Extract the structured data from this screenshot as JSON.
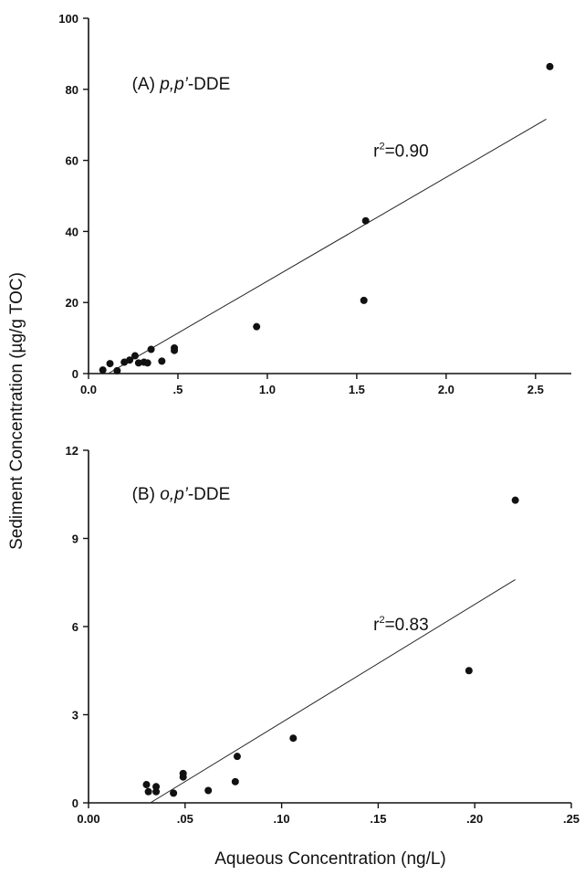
{
  "figure": {
    "ylabel": "Sediment Concentration (µg/g TOC)",
    "xlabel": "Aqueous Concentration (ng/L)"
  },
  "chart_data": [
    {
      "type": "scatter",
      "panel_prefix": "(A) ",
      "panel_compound": "p,p’",
      "panel_suffix": "-DDE",
      "r2_text": "0.90",
      "xlim": [
        0,
        2.7
      ],
      "ylim": [
        0,
        100
      ],
      "xticks": [
        0.0,
        0.5,
        1.0,
        1.5,
        2.0,
        2.5
      ],
      "xtick_labels": [
        "0.0",
        ".5",
        "1.0",
        "1.5",
        "2.0",
        "2.5"
      ],
      "yticks": [
        0,
        20,
        40,
        60,
        80,
        100
      ],
      "ytick_labels": [
        "0",
        "20",
        "40",
        "60",
        "80",
        "100"
      ],
      "points": [
        {
          "x": 0.08,
          "y": 1.0
        },
        {
          "x": 0.12,
          "y": 2.8
        },
        {
          "x": 0.16,
          "y": 0.8
        },
        {
          "x": 0.2,
          "y": 3.2
        },
        {
          "x": 0.23,
          "y": 3.8
        },
        {
          "x": 0.26,
          "y": 5.0
        },
        {
          "x": 0.28,
          "y": 3.0
        },
        {
          "x": 0.31,
          "y": 3.2
        },
        {
          "x": 0.33,
          "y": 3.0
        },
        {
          "x": 0.35,
          "y": 6.8
        },
        {
          "x": 0.41,
          "y": 3.5
        },
        {
          "x": 0.48,
          "y": 7.2
        },
        {
          "x": 0.48,
          "y": 6.5
        },
        {
          "x": 0.94,
          "y": 13.2
        },
        {
          "x": 1.54,
          "y": 20.6
        },
        {
          "x": 1.55,
          "y": 43.0
        },
        {
          "x": 2.58,
          "y": 86.4
        }
      ],
      "fit_line": [
        {
          "x": 0.11,
          "y": 0
        },
        {
          "x": 2.56,
          "y": 71.6
        }
      ]
    },
    {
      "type": "scatter",
      "panel_prefix": "(B) ",
      "panel_compound": "o,p’",
      "panel_suffix": "-DDE",
      "r2_text": "0.83",
      "xlim": [
        0,
        0.25
      ],
      "ylim": [
        0,
        12
      ],
      "xticks": [
        0.0,
        0.05,
        0.1,
        0.15,
        0.2,
        0.25
      ],
      "xtick_labels": [
        "0.00",
        ".05",
        ".10",
        ".15",
        ".20",
        ".25"
      ],
      "yticks": [
        0,
        3,
        6,
        9,
        12
      ],
      "ytick_labels": [
        "0",
        "3",
        "6",
        "9",
        "12"
      ],
      "points": [
        {
          "x": 0.03,
          "y": 0.62
        },
        {
          "x": 0.031,
          "y": 0.38
        },
        {
          "x": 0.035,
          "y": 0.55
        },
        {
          "x": 0.035,
          "y": 0.38
        },
        {
          "x": 0.044,
          "y": 0.33
        },
        {
          "x": 0.049,
          "y": 1.0
        },
        {
          "x": 0.049,
          "y": 0.88
        },
        {
          "x": 0.062,
          "y": 0.42
        },
        {
          "x": 0.076,
          "y": 0.72
        },
        {
          "x": 0.077,
          "y": 1.58
        },
        {
          "x": 0.106,
          "y": 2.2
        },
        {
          "x": 0.197,
          "y": 4.5
        },
        {
          "x": 0.221,
          "y": 10.3
        }
      ],
      "fit_line": [
        {
          "x": 0.032,
          "y": 0
        },
        {
          "x": 0.221,
          "y": 7.6
        }
      ]
    }
  ]
}
